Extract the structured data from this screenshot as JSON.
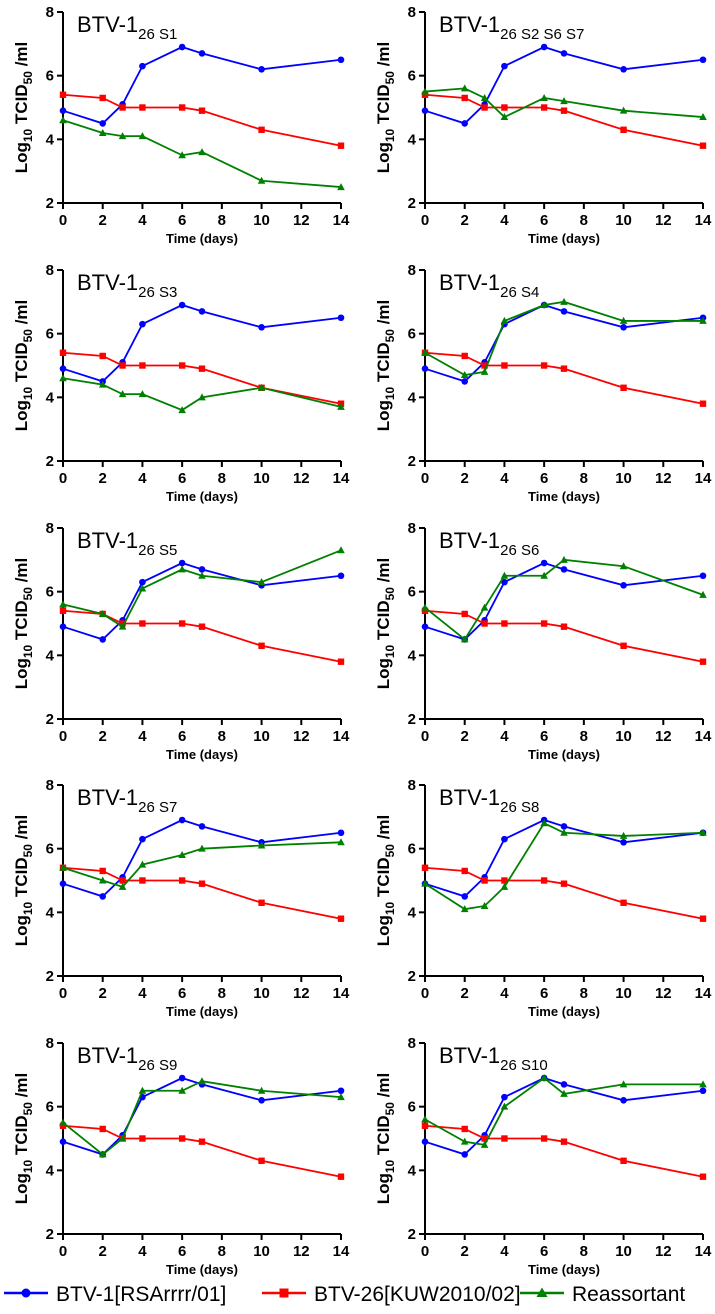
{
  "chart_data": [
    {
      "type": "line",
      "title": "BTV-1",
      "title_sub": "26 S1",
      "xlabel": "Time (days)",
      "ylabel_parts": [
        "Log",
        "10",
        " TCID",
        "50",
        " /ml"
      ],
      "x": [
        0,
        2,
        3,
        4,
        6,
        7,
        10,
        14
      ],
      "xlim": [
        0,
        14
      ],
      "xticks": [
        0,
        2,
        4,
        6,
        8,
        10,
        12,
        14
      ],
      "ylim": [
        2,
        8
      ],
      "yticks": [
        2,
        4,
        6,
        8
      ],
      "series": [
        {
          "name": "BTV-1[RSArrrr/01]",
          "values": [
            4.9,
            4.5,
            5.1,
            6.3,
            6.9,
            6.7,
            6.2,
            6.5
          ]
        },
        {
          "name": "BTV-26[KUW2010/02]",
          "values": [
            5.4,
            5.3,
            5.0,
            5.0,
            5.0,
            4.9,
            4.3,
            3.8
          ]
        },
        {
          "name": "Reassortant",
          "values": [
            4.6,
            4.2,
            4.1,
            4.1,
            3.5,
            3.6,
            2.7,
            2.5
          ]
        }
      ]
    },
    {
      "type": "line",
      "title": "BTV-1",
      "title_sub": "26 S2 S6 S7",
      "xlabel": "Time (days)",
      "ylabel_parts": [
        "Log",
        "10",
        " TCID",
        "50",
        " /ml"
      ],
      "x": [
        0,
        2,
        3,
        4,
        6,
        7,
        10,
        14
      ],
      "xlim": [
        0,
        14
      ],
      "xticks": [
        0,
        2,
        4,
        6,
        8,
        10,
        12,
        14
      ],
      "ylim": [
        2,
        8
      ],
      "yticks": [
        2,
        4,
        6,
        8
      ],
      "series": [
        {
          "name": "BTV-1[RSArrrr/01]",
          "values": [
            4.9,
            4.5,
            5.1,
            6.3,
            6.9,
            6.7,
            6.2,
            6.5
          ]
        },
        {
          "name": "BTV-26[KUW2010/02]",
          "values": [
            5.4,
            5.3,
            5.0,
            5.0,
            5.0,
            4.9,
            4.3,
            3.8
          ]
        },
        {
          "name": "Reassortant",
          "values": [
            5.5,
            5.6,
            5.3,
            4.7,
            5.3,
            5.2,
            4.9,
            4.7
          ]
        }
      ]
    },
    {
      "type": "line",
      "title": "BTV-1",
      "title_sub": "26 S3",
      "xlabel": "Time (days)",
      "ylabel_parts": [
        "Log",
        "10",
        " TCID",
        "50",
        " /ml"
      ],
      "x": [
        0,
        2,
        3,
        4,
        6,
        7,
        10,
        14
      ],
      "xlim": [
        0,
        14
      ],
      "xticks": [
        0,
        2,
        4,
        6,
        8,
        10,
        12,
        14
      ],
      "ylim": [
        2,
        8
      ],
      "yticks": [
        2,
        4,
        6,
        8
      ],
      "series": [
        {
          "name": "BTV-1[RSArrrr/01]",
          "values": [
            4.9,
            4.5,
            5.1,
            6.3,
            6.9,
            6.7,
            6.2,
            6.5
          ]
        },
        {
          "name": "BTV-26[KUW2010/02]",
          "values": [
            5.4,
            5.3,
            5.0,
            5.0,
            5.0,
            4.9,
            4.3,
            3.8
          ]
        },
        {
          "name": "Reassortant",
          "values": [
            4.6,
            4.4,
            4.1,
            4.1,
            3.6,
            4.0,
            4.3,
            3.7
          ]
        }
      ]
    },
    {
      "type": "line",
      "title": "BTV-1",
      "title_sub": "26 S4",
      "xlabel": "Time (days)",
      "ylabel_parts": [
        "Log",
        "10",
        " TCID",
        "50",
        " /ml"
      ],
      "x": [
        0,
        2,
        3,
        4,
        6,
        7,
        10,
        14
      ],
      "xlim": [
        0,
        14
      ],
      "xticks": [
        0,
        2,
        4,
        6,
        8,
        10,
        12,
        14
      ],
      "ylim": [
        2,
        8
      ],
      "yticks": [
        2,
        4,
        6,
        8
      ],
      "series": [
        {
          "name": "BTV-1[RSArrrr/01]",
          "values": [
            4.9,
            4.5,
            5.1,
            6.3,
            6.9,
            6.7,
            6.2,
            6.5
          ]
        },
        {
          "name": "BTV-26[KUW2010/02]",
          "values": [
            5.4,
            5.3,
            5.0,
            5.0,
            5.0,
            4.9,
            4.3,
            3.8
          ]
        },
        {
          "name": "Reassortant",
          "values": [
            5.4,
            4.7,
            4.8,
            6.4,
            6.9,
            7.0,
            6.4,
            6.4
          ]
        }
      ]
    },
    {
      "type": "line",
      "title": "BTV-1",
      "title_sub": "26 S5",
      "xlabel": "Time (days)",
      "ylabel_parts": [
        "Log",
        "10",
        " TCID",
        "50",
        " /ml"
      ],
      "x": [
        0,
        2,
        3,
        4,
        6,
        7,
        10,
        14
      ],
      "xlim": [
        0,
        14
      ],
      "xticks": [
        0,
        2,
        4,
        6,
        8,
        10,
        12,
        14
      ],
      "ylim": [
        2,
        8
      ],
      "yticks": [
        2,
        4,
        6,
        8
      ],
      "series": [
        {
          "name": "BTV-1[RSArrrr/01]",
          "values": [
            4.9,
            4.5,
            5.1,
            6.3,
            6.9,
            6.7,
            6.2,
            6.5
          ]
        },
        {
          "name": "BTV-26[KUW2010/02]",
          "values": [
            5.4,
            5.3,
            5.0,
            5.0,
            5.0,
            4.9,
            4.3,
            3.8
          ]
        },
        {
          "name": "Reassortant",
          "values": [
            5.6,
            5.3,
            4.9,
            6.1,
            6.7,
            6.5,
            6.3,
            7.3
          ]
        }
      ]
    },
    {
      "type": "line",
      "title": "BTV-1",
      "title_sub": "26 S6",
      "xlabel": "Time (days)",
      "ylabel_parts": [
        "Log",
        "10",
        " TCID",
        "50",
        " /ml"
      ],
      "x": [
        0,
        2,
        3,
        4,
        6,
        7,
        10,
        14
      ],
      "xlim": [
        0,
        14
      ],
      "xticks": [
        0,
        2,
        4,
        6,
        8,
        10,
        12,
        14
      ],
      "ylim": [
        2,
        8
      ],
      "yticks": [
        2,
        4,
        6,
        8
      ],
      "series": [
        {
          "name": "BTV-1[RSArrrr/01]",
          "values": [
            4.9,
            4.5,
            5.1,
            6.3,
            6.9,
            6.7,
            6.2,
            6.5
          ]
        },
        {
          "name": "BTV-26[KUW2010/02]",
          "values": [
            5.4,
            5.3,
            5.0,
            5.0,
            5.0,
            4.9,
            4.3,
            3.8
          ]
        },
        {
          "name": "Reassortant",
          "values": [
            5.5,
            4.5,
            5.5,
            6.5,
            6.5,
            7.0,
            6.8,
            5.9
          ]
        }
      ]
    },
    {
      "type": "line",
      "title": "BTV-1",
      "title_sub": "26 S7",
      "xlabel": "Time (days)",
      "ylabel_parts": [
        "Log",
        "10",
        " TCID",
        "50",
        " /ml"
      ],
      "x": [
        0,
        2,
        3,
        4,
        6,
        7,
        10,
        14
      ],
      "xlim": [
        0,
        14
      ],
      "xticks": [
        0,
        2,
        4,
        6,
        8,
        10,
        12,
        14
      ],
      "ylim": [
        2,
        8
      ],
      "yticks": [
        2,
        4,
        6,
        8
      ],
      "series": [
        {
          "name": "BTV-1[RSArrrr/01]",
          "values": [
            4.9,
            4.5,
            5.1,
            6.3,
            6.9,
            6.7,
            6.2,
            6.5
          ]
        },
        {
          "name": "BTV-26[KUW2010/02]",
          "values": [
            5.4,
            5.3,
            5.0,
            5.0,
            5.0,
            4.9,
            4.3,
            3.8
          ]
        },
        {
          "name": "Reassortant",
          "values": [
            5.4,
            5.0,
            4.8,
            5.5,
            5.8,
            6.0,
            6.1,
            6.2
          ]
        }
      ]
    },
    {
      "type": "line",
      "title": "BTV-1",
      "title_sub": "26 S8",
      "xlabel": "Time (days)",
      "ylabel_parts": [
        "Log",
        "10",
        " TCID",
        "50",
        " /ml"
      ],
      "x": [
        0,
        2,
        3,
        4,
        6,
        7,
        10,
        14
      ],
      "xlim": [
        0,
        14
      ],
      "xticks": [
        0,
        2,
        4,
        6,
        8,
        10,
        12,
        14
      ],
      "ylim": [
        2,
        8
      ],
      "yticks": [
        2,
        4,
        6,
        8
      ],
      "series": [
        {
          "name": "BTV-1[RSArrrr/01]",
          "values": [
            4.9,
            4.5,
            5.1,
            6.3,
            6.9,
            6.7,
            6.2,
            6.5
          ]
        },
        {
          "name": "BTV-26[KUW2010/02]",
          "values": [
            5.4,
            5.3,
            5.0,
            5.0,
            5.0,
            4.9,
            4.3,
            3.8
          ]
        },
        {
          "name": "Reassortant",
          "values": [
            4.9,
            4.1,
            4.2,
            4.8,
            6.8,
            6.5,
            6.4,
            6.5
          ]
        }
      ]
    },
    {
      "type": "line",
      "title": "BTV-1",
      "title_sub": "26 S9",
      "xlabel": "Time (days)",
      "ylabel_parts": [
        "Log",
        "10",
        " TCID",
        "50",
        " /ml"
      ],
      "x": [
        0,
        2,
        3,
        4,
        6,
        7,
        10,
        14
      ],
      "xlim": [
        0,
        14
      ],
      "xticks": [
        0,
        2,
        4,
        6,
        8,
        10,
        12,
        14
      ],
      "ylim": [
        2,
        8
      ],
      "yticks": [
        2,
        4,
        6,
        8
      ],
      "series": [
        {
          "name": "BTV-1[RSArrrr/01]",
          "values": [
            4.9,
            4.5,
            5.1,
            6.3,
            6.9,
            6.7,
            6.2,
            6.5
          ]
        },
        {
          "name": "BTV-26[KUW2010/02]",
          "values": [
            5.4,
            5.3,
            5.0,
            5.0,
            5.0,
            4.9,
            4.3,
            3.8
          ]
        },
        {
          "name": "Reassortant",
          "values": [
            5.5,
            4.5,
            5.0,
            6.5,
            6.5,
            6.8,
            6.5,
            6.3
          ]
        }
      ]
    },
    {
      "type": "line",
      "title": "BTV-1",
      "title_sub": "26 S10",
      "xlabel": "Time (days)",
      "ylabel_parts": [
        "Log",
        "10",
        " TCID",
        "50",
        " /ml"
      ],
      "x": [
        0,
        2,
        3,
        4,
        6,
        7,
        10,
        14
      ],
      "xlim": [
        0,
        14
      ],
      "xticks": [
        0,
        2,
        4,
        6,
        8,
        10,
        12,
        14
      ],
      "ylim": [
        2,
        8
      ],
      "yticks": [
        2,
        4,
        6,
        8
      ],
      "series": [
        {
          "name": "BTV-1[RSArrrr/01]",
          "values": [
            4.9,
            4.5,
            5.1,
            6.3,
            6.9,
            6.7,
            6.2,
            6.5
          ]
        },
        {
          "name": "BTV-26[KUW2010/02]",
          "values": [
            5.4,
            5.3,
            5.0,
            5.0,
            5.0,
            4.9,
            4.3,
            3.8
          ]
        },
        {
          "name": "Reassortant",
          "values": [
            5.6,
            4.9,
            4.8,
            6.0,
            6.9,
            6.4,
            6.7,
            6.7
          ]
        }
      ]
    }
  ],
  "legend": {
    "placement": "bottom",
    "items": [
      {
        "label": "BTV-1[RSArrrr/01]",
        "color": "#0000ff",
        "marker": "circle"
      },
      {
        "label": "BTV-26[KUW2010/02]",
        "color": "#ff0000",
        "marker": "square"
      },
      {
        "label": "Reassortant",
        "color": "#008000",
        "marker": "triangle"
      }
    ]
  }
}
